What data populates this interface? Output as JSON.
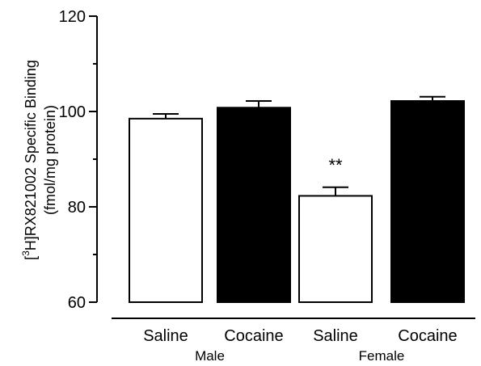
{
  "chart_data": {
    "type": "bar",
    "ylabel_prefix": "[",
    "ylabel_sup": "3",
    "ylabel_main": "H]RX821002 Specific Binding",
    "ylabel_line2": "(fmol/mg protein)",
    "ylim": [
      60,
      120
    ],
    "yticks": [
      "60",
      "80",
      "100",
      "120"
    ],
    "categories": [
      "Saline",
      "Cocaine",
      "Saline",
      "Cocaine"
    ],
    "groups": [
      "Male",
      "Female"
    ],
    "values": [
      98.5,
      100.8,
      82.3,
      102.2
    ],
    "errors": [
      1.0,
      1.4,
      1.8,
      0.9
    ],
    "fills": [
      "#ffffff",
      "#000000",
      "#ffffff",
      "#000000"
    ],
    "annotations": [
      "",
      "",
      "**",
      ""
    ],
    "grid": false,
    "legend": "none"
  }
}
